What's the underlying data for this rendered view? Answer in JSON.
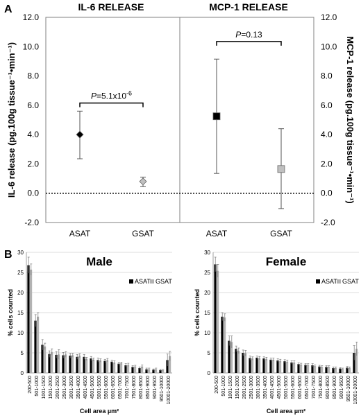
{
  "panel_a_label": "A",
  "panel_b_label": "B",
  "chart_data": [
    {
      "type": "scatter",
      "title_left": "IL-6 RELEASE",
      "title_right": "MCP-1 RELEASE",
      "ylabel_left": "IL-6 release (pg.100g tissue⁻¹•min⁻¹)",
      "ylabel_right": "MCP-1 release (pg.100g tissue⁻¹•min⁻¹)",
      "ylim": [
        -2,
        12
      ],
      "yticks": [
        "-2.0",
        "0.0",
        "2.0",
        "4.0",
        "6.0",
        "8.0",
        "10.0",
        "12.0"
      ],
      "categories": [
        "ASAT",
        "GSAT",
        "ASAT",
        "GSAT"
      ],
      "series": [
        {
          "group": "IL-6",
          "marker": "diamond",
          "points": [
            {
              "x": "ASAT",
              "y": 4.0,
              "low": 2.35,
              "high": 5.6,
              "color": "#000000"
            },
            {
              "x": "GSAT",
              "y": 0.8,
              "low": 0.45,
              "high": 1.1,
              "color": "#c0c0c0"
            }
          ]
        },
        {
          "group": "MCP-1",
          "marker": "square",
          "points": [
            {
              "x": "ASAT",
              "y": 5.25,
              "low": 1.35,
              "high": 9.15,
              "color": "#000000"
            },
            {
              "x": "GSAT",
              "y": 1.65,
              "low": -1.05,
              "high": 4.4,
              "color": "#c0c0c0"
            }
          ]
        }
      ],
      "annotations": [
        {
          "group": "IL-6",
          "text_prefix": "P",
          "text": "=5.1x10",
          "sup": "-6",
          "y": 6.15
        },
        {
          "group": "MCP-1",
          "text_prefix": "P",
          "text": "=0.13",
          "sup": "",
          "y": 10.35
        }
      ],
      "reference_line": 0
    },
    {
      "type": "bar",
      "title": "Male",
      "xlabel": "Cell area µm²",
      "ylabel": "% cells counted",
      "ylim": [
        0,
        30
      ],
      "yticks": [
        "0",
        "5",
        "10",
        "15",
        "20",
        "25",
        "30"
      ],
      "legend": "top-right",
      "categories": [
        "200-500",
        "501-1000",
        "1001-1500",
        "1501-2000",
        "2001-2500",
        "2501-3000",
        "3001-3500",
        "3501-4000",
        "4001-4500",
        "4501-5000",
        "5001-5500",
        "5501-6000",
        "6001-6500",
        "6501-7000",
        "7001-7500",
        "7501-8000",
        "8001-8500",
        "8501-9000",
        "9001-9500",
        "9501-10000",
        "10001-20000"
      ],
      "series": [
        {
          "name": "ASAT",
          "color": "#000000",
          "values": [
            26.8,
            13.0,
            7.0,
            4.7,
            4.5,
            4.4,
            4.3,
            4.0,
            4.0,
            3.6,
            3.2,
            3.0,
            2.8,
            2.3,
            1.9,
            1.5,
            1.2,
            0.9,
            0.8,
            0.7,
            3.2
          ],
          "errors": [
            2.0,
            1.5,
            1.3,
            0.8,
            0.8,
            0.7,
            0.6,
            0.6,
            0.6,
            0.5,
            0.5,
            0.4,
            0.4,
            0.4,
            0.4,
            0.3,
            0.3,
            0.3,
            0.2,
            0.2,
            1.5
          ]
        },
        {
          "name": "GSAT",
          "color": "#b3b3b3",
          "values": [
            25.7,
            14.0,
            6.6,
            5.2,
            4.6,
            4.6,
            4.4,
            4.3,
            3.5,
            3.3,
            3.1,
            3.2,
            2.6,
            2.4,
            2.0,
            1.6,
            1.6,
            0.9,
            0.9,
            0.7,
            4.2
          ],
          "errors": [
            1.4,
            1.0,
            0.8,
            0.8,
            1.2,
            0.7,
            0.5,
            0.5,
            0.4,
            0.4,
            0.4,
            0.4,
            0.4,
            0.3,
            0.4,
            0.3,
            0.4,
            0.3,
            0.3,
            0.2,
            1.2
          ]
        }
      ]
    },
    {
      "type": "bar",
      "title": "Female",
      "xlabel": "Cell area µm²",
      "ylabel": "% cells counted",
      "ylim": [
        0,
        30
      ],
      "yticks": [
        "0",
        "5",
        "10",
        "15",
        "20",
        "25",
        "30"
      ],
      "legend": "top-right",
      "categories": [
        "200-500",
        "501-1000",
        "1001-1500",
        "1501-2000",
        "2001-2500",
        "2501-3000",
        "3001-3500",
        "3501-4000",
        "4001-4500",
        "4501-5000",
        "5001-5500",
        "5501-6000",
        "6001-6500",
        "6501-7000",
        "7001-7500",
        "7501-8000",
        "8001-8500",
        "8501-9000",
        "9001-9500",
        "9501-10000",
        "10001-20000"
      ],
      "series": [
        {
          "name": "ASAT",
          "color": "#000000",
          "values": [
            27.0,
            14.0,
            8.0,
            6.0,
            5.0,
            3.7,
            3.8,
            3.6,
            3.3,
            3.1,
            2.9,
            2.6,
            2.2,
            2.0,
            1.9,
            1.6,
            1.5,
            1.2,
            1.1,
            1.3,
            5.0
          ],
          "errors": [
            1.8,
            1.0,
            1.2,
            0.7,
            0.7,
            0.5,
            0.4,
            0.4,
            0.4,
            0.4,
            0.4,
            0.4,
            0.3,
            0.3,
            0.4,
            0.3,
            0.3,
            0.3,
            0.2,
            0.3,
            1.8
          ]
        },
        {
          "name": "GSAT",
          "color": "#b3b3b3",
          "values": [
            25.4,
            13.8,
            7.7,
            5.5,
            4.9,
            3.6,
            3.7,
            3.5,
            3.3,
            3.0,
            2.8,
            2.6,
            2.1,
            2.0,
            1.7,
            1.5,
            1.5,
            1.2,
            1.0,
            1.2,
            6.0
          ],
          "errors": [
            1.6,
            0.9,
            1.5,
            0.7,
            0.7,
            0.4,
            0.4,
            0.4,
            0.4,
            0.4,
            0.4,
            0.4,
            0.3,
            0.3,
            0.3,
            0.3,
            0.3,
            0.3,
            0.2,
            0.3,
            1.7
          ]
        }
      ]
    }
  ]
}
